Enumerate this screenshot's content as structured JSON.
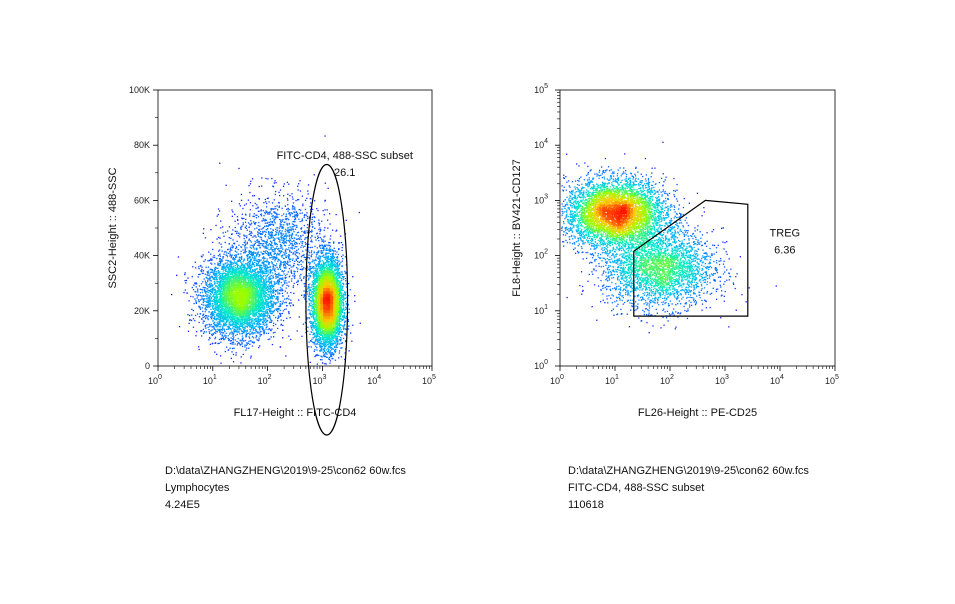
{
  "chart_data": [
    {
      "type": "scatter",
      "subtype": "flow-cytometry-density-dot-plot",
      "xlabel": "FL17-Height :: FITC-CD4",
      "ylabel": "SSC2-Height :: 488-SSC",
      "xscale": "log",
      "yscale": "linear",
      "xlim": [
        1,
        100000
      ],
      "ylim": [
        0,
        100000
      ],
      "x_ticks": [
        "10^0",
        "10^1",
        "10^2",
        "10^3",
        "10^4",
        "10^5"
      ],
      "y_ticks": [
        "0",
        "20K",
        "40K",
        "60K",
        "80K",
        "100K"
      ],
      "y_tick_values": [
        0,
        20000,
        40000,
        60000,
        80000,
        100000
      ],
      "populations": [
        {
          "center_x": 30,
          "center_y": 25000,
          "spread_logx": 0.33,
          "spread_y": 7000,
          "density": "high"
        },
        {
          "center_x": 1200,
          "center_y": 23000,
          "spread_logx": 0.14,
          "spread_y": 8000,
          "density": "high"
        },
        {
          "center_x": 150,
          "center_y": 45000,
          "spread_logx": 0.45,
          "spread_y": 9000,
          "density": "low"
        }
      ],
      "gates": [
        {
          "shape": "ellipse",
          "name": "FITC-CD4, 488-SSC subset",
          "value": "26.1",
          "center_x": 1200,
          "center_y": 24000,
          "log_half_width": 0.38,
          "half_height": 49000
        }
      ],
      "caption": {
        "file": "D:\\data\\ZHANGZHENG\\2019\\9-25\\con62 60w.fcs",
        "population": "Lymphocytes",
        "count": "4.24E5"
      }
    },
    {
      "type": "scatter",
      "subtype": "flow-cytometry-density-dot-plot",
      "xlabel": "FL26-Height :: PE-CD25",
      "ylabel": "FL8-Height :: BV421-CD127",
      "xscale": "log",
      "yscale": "log",
      "xlim": [
        1,
        100000
      ],
      "ylim": [
        1,
        100000
      ],
      "x_ticks": [
        "10^0",
        "10^1",
        "10^2",
        "10^3",
        "10^4",
        "10^5"
      ],
      "y_ticks": [
        "10^0",
        "10^1",
        "10^2",
        "10^3",
        "10^4",
        "10^5"
      ],
      "populations": [
        {
          "center_x": 10,
          "center_y": 600,
          "spread_logx": 0.45,
          "spread_logy": 0.3,
          "density": "high"
        },
        {
          "center_x": 60,
          "center_y": 60,
          "spread_logx": 0.5,
          "spread_logy": 0.35,
          "density": "medium"
        }
      ],
      "gates": [
        {
          "shape": "polygon",
          "name": "TREG",
          "value": "6.36",
          "vertices": [
            [
              22,
              120
            ],
            [
              440,
              1000
            ],
            [
              2600,
              850
            ],
            [
              2600,
              8
            ],
            [
              22,
              8
            ]
          ]
        }
      ],
      "caption": {
        "file": "D:\\data\\ZHANGZHENG\\2019\\9-25\\con62 60w.fcs",
        "population": "FITC-CD4, 488-SSC subset",
        "count": "110618"
      }
    }
  ],
  "colors": {
    "density_low": "#1a1aff",
    "density_mid": "#00e5ff",
    "density_high_mid": "#c8ff00",
    "density_peak": "#ff1a00"
  }
}
